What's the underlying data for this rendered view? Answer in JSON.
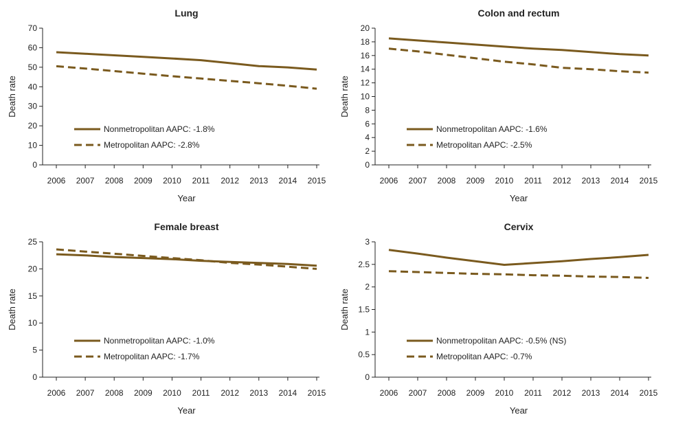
{
  "line_color": "#7a5a1e",
  "chart_data": [
    {
      "type": "line",
      "title": "Lung",
      "xlabel": "Year",
      "ylabel": "Death rate",
      "x": [
        2006,
        2007,
        2008,
        2009,
        2010,
        2011,
        2012,
        2013,
        2014,
        2015
      ],
      "ylim": [
        0,
        70
      ],
      "yticks": [
        0,
        10,
        20,
        30,
        40,
        50,
        60,
        70
      ],
      "ytick_labels": [
        "0",
        "10",
        "20",
        "30",
        "40",
        "50",
        "60",
        "70"
      ],
      "series": [
        {
          "name": "Nonmetropolitan AAPC: -1.8%",
          "style": "solid",
          "values": [
            57.7,
            56.9,
            56.1,
            55.3,
            54.5,
            53.6,
            52.1,
            50.6,
            49.9,
            48.8
          ]
        },
        {
          "name": "Metropolitan AAPC: -2.8%",
          "style": "dashed",
          "values": [
            50.5,
            49.3,
            48.0,
            46.7,
            45.4,
            44.2,
            43.0,
            41.8,
            40.5,
            39.0
          ]
        }
      ]
    },
    {
      "type": "line",
      "title": "Colon and rectum",
      "xlabel": "Year",
      "ylabel": "Death rate",
      "x": [
        2006,
        2007,
        2008,
        2009,
        2010,
        2011,
        2012,
        2013,
        2014,
        2015
      ],
      "ylim": [
        0,
        20
      ],
      "yticks": [
        0,
        2,
        4,
        6,
        8,
        10,
        12,
        14,
        16,
        18,
        20
      ],
      "ytick_labels": [
        "0",
        "2",
        "4",
        "6",
        "8",
        "10",
        "12",
        "14",
        "16",
        "18",
        "20"
      ],
      "series": [
        {
          "name": "Nonmetropolitan AAPC: -1.6%",
          "style": "solid",
          "values": [
            18.5,
            18.2,
            17.9,
            17.6,
            17.3,
            17.0,
            16.8,
            16.5,
            16.2,
            16.0
          ]
        },
        {
          "name": "Metropolitan AAPC: -2.5%",
          "style": "dashed",
          "values": [
            17.0,
            16.6,
            16.1,
            15.6,
            15.1,
            14.7,
            14.2,
            14.0,
            13.7,
            13.5
          ]
        }
      ]
    },
    {
      "type": "line",
      "title": "Female breast",
      "xlabel": "Year",
      "ylabel": "Death rate",
      "x": [
        2006,
        2007,
        2008,
        2009,
        2010,
        2011,
        2012,
        2013,
        2014,
        2015
      ],
      "ylim": [
        0,
        25
      ],
      "yticks": [
        0,
        5,
        10,
        15,
        20,
        25
      ],
      "ytick_labels": [
        "0",
        "5",
        "10",
        "15",
        "20",
        "25"
      ],
      "series": [
        {
          "name": "Nonmetropolitan AAPC: -1.0%",
          "style": "solid",
          "values": [
            22.7,
            22.5,
            22.2,
            22.0,
            21.8,
            21.5,
            21.3,
            21.1,
            20.9,
            20.6
          ]
        },
        {
          "name": "Metropolitan AAPC: -1.7%",
          "style": "dashed",
          "values": [
            23.6,
            23.2,
            22.8,
            22.4,
            22.0,
            21.6,
            21.1,
            20.8,
            20.4,
            20.0
          ]
        }
      ]
    },
    {
      "type": "line",
      "title": "Cervix",
      "xlabel": "Year",
      "ylabel": "Death rate",
      "x": [
        2006,
        2007,
        2008,
        2009,
        2010,
        2011,
        2012,
        2013,
        2014,
        2015
      ],
      "ylim": [
        0,
        3
      ],
      "yticks": [
        0,
        0.5,
        1,
        1.5,
        2,
        2.5,
        3
      ],
      "ytick_labels": [
        "0",
        "0.5",
        "1",
        "1.5",
        "2",
        "2.5",
        "3"
      ],
      "series": [
        {
          "name": "Nonmetropolitan AAPC: -0.5% (NS)",
          "style": "solid",
          "values": [
            2.82,
            2.74,
            2.65,
            2.57,
            2.49,
            2.53,
            2.57,
            2.62,
            2.66,
            2.71
          ]
        },
        {
          "name": "Metropolitan AAPC: -0.7%",
          "style": "dashed",
          "values": [
            2.35,
            2.33,
            2.31,
            2.29,
            2.28,
            2.26,
            2.25,
            2.23,
            2.22,
            2.2
          ]
        }
      ]
    }
  ]
}
